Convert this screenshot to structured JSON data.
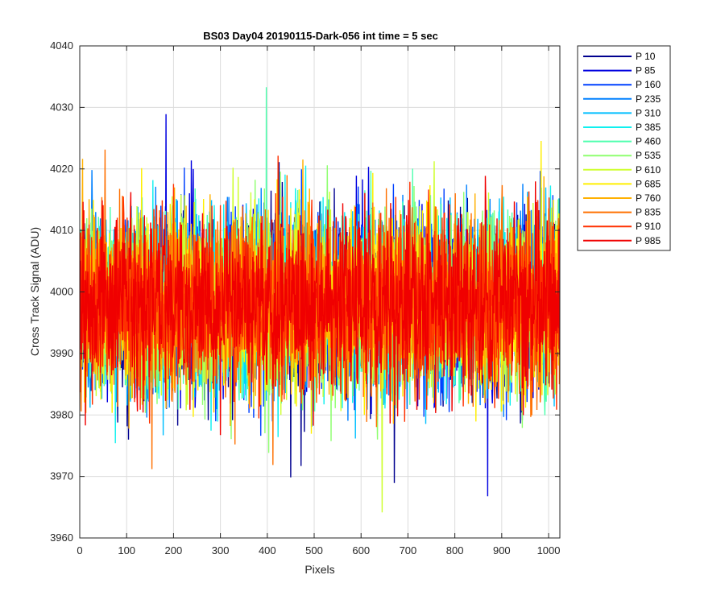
{
  "chart_data": {
    "type": "line",
    "title": "BS03 Day04 20190115-Dark-056 int time = 5 sec",
    "xlabel": "Pixels",
    "ylabel": "Cross Track Signal (ADU)",
    "xlim": [
      0,
      1024
    ],
    "ylim": [
      3960,
      4040
    ],
    "xticks": [
      0,
      100,
      200,
      300,
      400,
      500,
      600,
      700,
      800,
      900,
      1000
    ],
    "yticks": [
      3960,
      3970,
      3980,
      3990,
      4000,
      4010,
      4020,
      4030,
      4040
    ],
    "grid": true,
    "legend_position": "outside-right-top",
    "noise": {
      "center": 3998,
      "sigma": 7,
      "points_per_series": 1024
    },
    "series": [
      {
        "name": "P 10",
        "color": "#00008F"
      },
      {
        "name": "P 85",
        "color": "#0000E0"
      },
      {
        "name": "P 160",
        "color": "#0040FF"
      },
      {
        "name": "P 235",
        "color": "#0080FF"
      },
      {
        "name": "P 310",
        "color": "#00BFFF"
      },
      {
        "name": "P 385",
        "color": "#10F0EF"
      },
      {
        "name": "P 460",
        "color": "#50FFAF"
      },
      {
        "name": "P 535",
        "color": "#8FFF70"
      },
      {
        "name": "P 610",
        "color": "#CFFF30"
      },
      {
        "name": "P 685",
        "color": "#FFEF00"
      },
      {
        "name": "P 760",
        "color": "#FFB000"
      },
      {
        "name": "P 835",
        "color": "#FF7000"
      },
      {
        "name": "P 910",
        "color": "#FF3000"
      },
      {
        "name": "P 985",
        "color": "#F00000"
      }
    ]
  }
}
